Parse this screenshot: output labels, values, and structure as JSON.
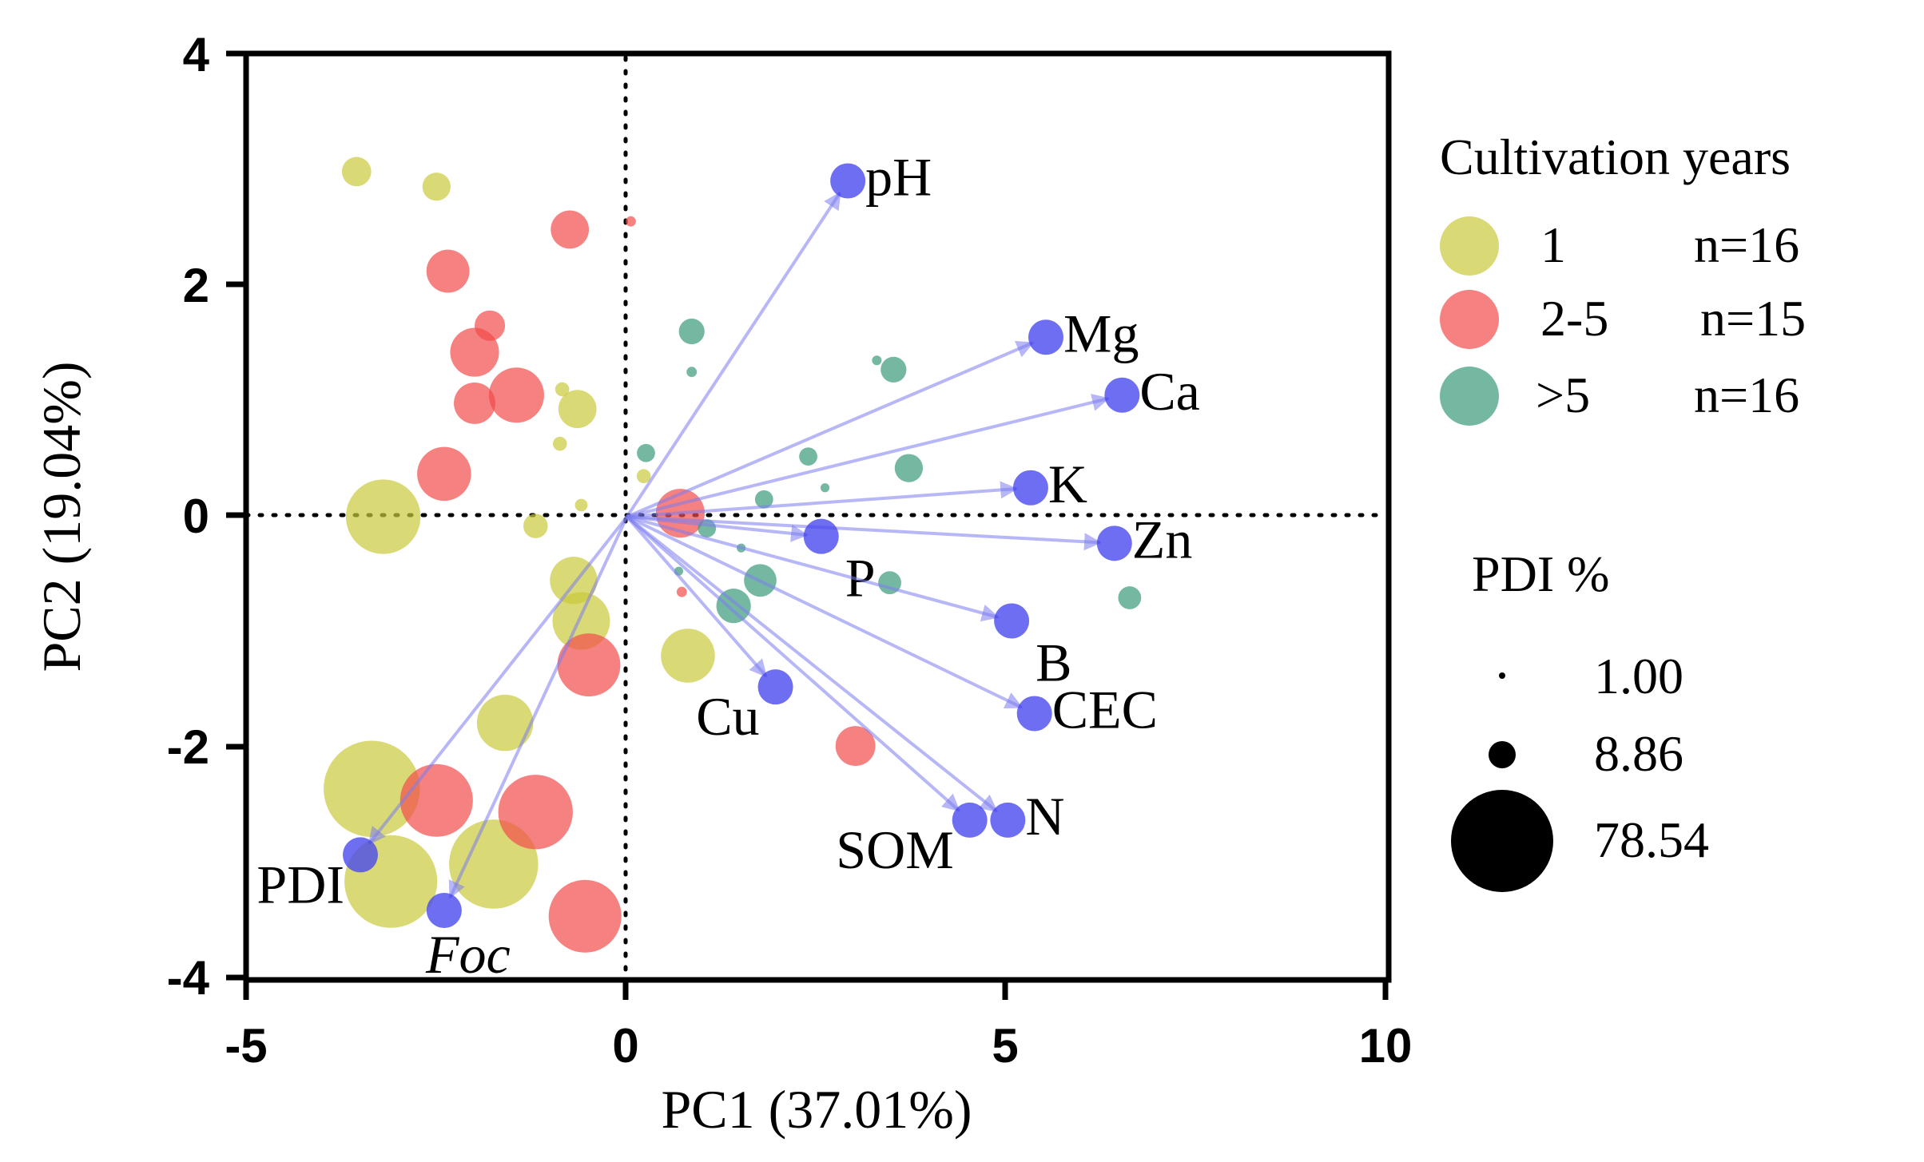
{
  "chart_data": {
    "type": "scatter",
    "subtype": "pca-biplot",
    "xlabel": "PC1 (37.01%)",
    "ylabel": "PC2 (19.04%)",
    "xlim": [
      -5,
      10
    ],
    "ylim": [
      -4,
      4
    ],
    "xticks": [
      -5,
      0,
      5,
      10
    ],
    "yticks": [
      -4,
      -2,
      0,
      2,
      4
    ],
    "xtick_labels": [
      "-5",
      "0",
      "5",
      "10"
    ],
    "ytick_labels": [
      "-4",
      "-2",
      "0",
      "2",
      "4"
    ],
    "reference_lines": {
      "x": 0,
      "y": 0,
      "style": "dotted"
    },
    "colors": {
      "group_1": "#c9c93a",
      "group_2_5": "#f24b4b",
      "group_gt5": "#3a9a7a",
      "vector": "#7b7bf0",
      "vector_point": "#4545ee"
    },
    "legend": {
      "color_title": "Cultivation years",
      "groups": [
        {
          "label": "1",
          "n": "n=16",
          "color_key": "group_1"
        },
        {
          "label": "2-5",
          "n": "n=15",
          "color_key": "group_2_5"
        },
        {
          "label": ">5",
          "n": "n=16",
          "color_key": "group_gt5"
        }
      ],
      "size_title": "PDI %",
      "sizes": [
        {
          "label": "1.00",
          "value": 1.0
        },
        {
          "label": "8.86",
          "value": 8.86
        },
        {
          "label": "78.54",
          "value": 78.54
        }
      ]
    },
    "vectors": [
      {
        "name": "pH",
        "x": 2.9,
        "y": 2.9,
        "label_pos": "right"
      },
      {
        "name": "Mg",
        "x": 5.5,
        "y": 1.55,
        "label_pos": "right"
      },
      {
        "name": "Ca",
        "x": 6.5,
        "y": 1.05,
        "label_pos": "right"
      },
      {
        "name": "K",
        "x": 5.3,
        "y": 0.25,
        "label_pos": "right"
      },
      {
        "name": "Zn",
        "x": 6.4,
        "y": -0.23,
        "label_pos": "right"
      },
      {
        "name": "P",
        "x": 2.55,
        "y": -0.17,
        "label_pos": "below-right"
      },
      {
        "name": "B",
        "x": 5.05,
        "y": -0.9,
        "label_pos": "below-right"
      },
      {
        "name": "CEC",
        "x": 5.35,
        "y": -1.7,
        "label_pos": "right"
      },
      {
        "name": "Cu",
        "x": 1.95,
        "y": -1.47,
        "label_pos": "below-left"
      },
      {
        "name": "N",
        "x": 5.0,
        "y": -2.62,
        "label_pos": "right"
      },
      {
        "name": "SOM",
        "x": 4.5,
        "y": -2.62,
        "label_pos": "below-left"
      },
      {
        "name": "PDI",
        "x": -3.5,
        "y": -2.92,
        "label_pos": "below-left",
        "italic": false
      },
      {
        "name": "Foc",
        "x": -2.4,
        "y": -3.4,
        "label_pos": "below",
        "italic": true
      }
    ],
    "points": [
      {
        "group": "group_1",
        "x": -3.55,
        "y": 2.98,
        "pdi": 6.5
      },
      {
        "group": "group_1",
        "x": -2.5,
        "y": 2.85,
        "pdi": 6.0
      },
      {
        "group": "group_1",
        "x": -0.65,
        "y": 0.93,
        "pdi": 11
      },
      {
        "group": "group_1",
        "x": -0.85,
        "y": 1.1,
        "pdi": 1.5
      },
      {
        "group": "group_1",
        "x": -0.88,
        "y": 0.63,
        "pdi": 1.5
      },
      {
        "group": "group_1",
        "x": 0.22,
        "y": 0.35,
        "pdi": 1.5
      },
      {
        "group": "group_1",
        "x": -0.6,
        "y": 0.1,
        "pdi": 1.2
      },
      {
        "group": "group_1",
        "x": -3.2,
        "y": 0.0,
        "pdi": 42
      },
      {
        "group": "group_1",
        "x": -1.2,
        "y": -0.08,
        "pdi": 4.5
      },
      {
        "group": "group_1",
        "x": -0.7,
        "y": -0.55,
        "pdi": 17
      },
      {
        "group": "group_1",
        "x": -0.6,
        "y": -0.9,
        "pdi": 25
      },
      {
        "group": "group_1",
        "x": 0.8,
        "y": -1.2,
        "pdi": 22
      },
      {
        "group": "group_1",
        "x": -1.6,
        "y": -1.78,
        "pdi": 24
      },
      {
        "group": "group_1",
        "x": -3.35,
        "y": -2.35,
        "pdi": 70
      },
      {
        "group": "group_1",
        "x": -3.1,
        "y": -3.15,
        "pdi": 65
      },
      {
        "group": "group_1",
        "x": -1.75,
        "y": -3.0,
        "pdi": 60
      },
      {
        "group": "group_2_5",
        "x": -0.75,
        "y": 2.48,
        "pdi": 11
      },
      {
        "group": "group_2_5",
        "x": 0.05,
        "y": 2.55,
        "pdi": 0.8
      },
      {
        "group": "group_2_5",
        "x": -2.35,
        "y": 2.12,
        "pdi": 14
      },
      {
        "group": "group_2_5",
        "x": -1.8,
        "y": 1.65,
        "pdi": 7
      },
      {
        "group": "group_2_5",
        "x": -2.0,
        "y": 1.42,
        "pdi": 18
      },
      {
        "group": "group_2_5",
        "x": -2.0,
        "y": 0.98,
        "pdi": 13
      },
      {
        "group": "group_2_5",
        "x": -1.45,
        "y": 1.05,
        "pdi": 23
      },
      {
        "group": "group_2_5",
        "x": -2.4,
        "y": 0.37,
        "pdi": 22
      },
      {
        "group": "group_2_5",
        "x": 0.7,
        "y": 0.03,
        "pdi": 18
      },
      {
        "group": "group_2_5",
        "x": 0.72,
        "y": -0.65,
        "pdi": 0.8
      },
      {
        "group": "group_2_5",
        "x": -0.5,
        "y": -1.28,
        "pdi": 30
      },
      {
        "group": "group_2_5",
        "x": 3.0,
        "y": -1.98,
        "pdi": 12
      },
      {
        "group": "group_2_5",
        "x": -2.5,
        "y": -2.45,
        "pdi": 40
      },
      {
        "group": "group_2_5",
        "x": -1.2,
        "y": -2.55,
        "pdi": 42
      },
      {
        "group": "group_2_5",
        "x": -0.55,
        "y": -3.45,
        "pdi": 40
      },
      {
        "group": "group_gt5",
        "x": 0.85,
        "y": 1.6,
        "pdi": 5
      },
      {
        "group": "group_gt5",
        "x": 0.85,
        "y": 1.25,
        "pdi": 0.8
      },
      {
        "group": "group_gt5",
        "x": 3.5,
        "y": 1.27,
        "pdi": 5
      },
      {
        "group": "group_gt5",
        "x": 3.28,
        "y": 1.35,
        "pdi": 0.7
      },
      {
        "group": "group_gt5",
        "x": 0.25,
        "y": 0.55,
        "pdi": 2.5
      },
      {
        "group": "group_gt5",
        "x": 2.38,
        "y": 0.52,
        "pdi": 2.5
      },
      {
        "group": "group_gt5",
        "x": 3.7,
        "y": 0.42,
        "pdi": 6
      },
      {
        "group": "group_gt5",
        "x": 2.6,
        "y": 0.25,
        "pdi": 0.6
      },
      {
        "group": "group_gt5",
        "x": 1.8,
        "y": 0.15,
        "pdi": 2.5
      },
      {
        "group": "group_gt5",
        "x": 1.05,
        "y": -0.1,
        "pdi": 2.5
      },
      {
        "group": "group_gt5",
        "x": 1.5,
        "y": -0.27,
        "pdi": 0.6
      },
      {
        "group": "group_gt5",
        "x": 0.68,
        "y": -0.47,
        "pdi": 0.6
      },
      {
        "group": "group_gt5",
        "x": 1.75,
        "y": -0.55,
        "pdi": 8
      },
      {
        "group": "group_gt5",
        "x": 3.45,
        "y": -0.57,
        "pdi": 4
      },
      {
        "group": "group_gt5",
        "x": 1.4,
        "y": -0.77,
        "pdi": 9
      },
      {
        "group": "group_gt5",
        "x": 6.6,
        "y": -0.7,
        "pdi": 4
      }
    ]
  }
}
